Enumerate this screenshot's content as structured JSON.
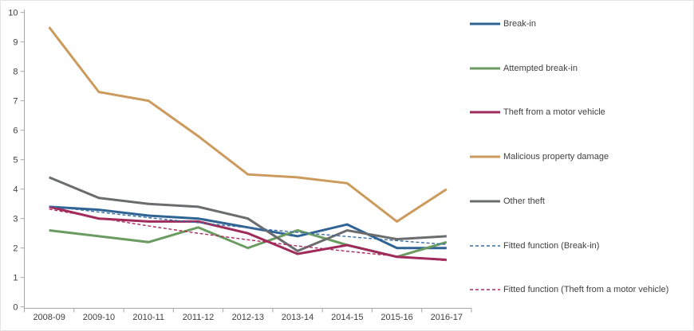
{
  "chart": {
    "background": "#FFFFFF",
    "border_color": "#E3E3E3",
    "axis_color": "#A6A6A6",
    "label_color": "#404040",
    "font_size": 11
  },
  "chart_data": {
    "type": "line",
    "title": "",
    "xlabel": "",
    "ylabel": "",
    "ylim": [
      0,
      10
    ],
    "yticks": [
      0,
      1,
      2,
      3,
      4,
      5,
      6,
      7,
      8,
      9,
      10
    ],
    "grid": false,
    "legend_position": "right",
    "categories": [
      "2008-09",
      "2009-10",
      "2010-11",
      "2011-12",
      "2012-13",
      "2013-14",
      "2014-15",
      "2015-16",
      "2016-17"
    ],
    "series": [
      {
        "name": "Break-in",
        "color": "#2E6394",
        "line_style": "solid",
        "values": [
          3.4,
          3.3,
          3.1,
          3.0,
          2.7,
          2.4,
          2.8,
          2.0,
          2.0
        ]
      },
      {
        "name": "Attempted break-in",
        "color": "#6A9B60",
        "line_style": "solid",
        "values": [
          2.6,
          2.4,
          2.2,
          2.7,
          2.0,
          2.6,
          2.1,
          1.7,
          2.2
        ]
      },
      {
        "name": "Theft from a motor vehicle",
        "color": "#9F2B5B",
        "line_style": "solid",
        "values": [
          3.4,
          3.0,
          2.9,
          2.9,
          2.5,
          1.8,
          2.1,
          1.7,
          1.6
        ]
      },
      {
        "name": "Malicious property damage",
        "color": "#CB9A5C",
        "line_style": "solid",
        "values": [
          9.5,
          7.3,
          7.0,
          5.8,
          4.5,
          4.4,
          4.2,
          2.9,
          4.0
        ]
      },
      {
        "name": "Other theft",
        "color": "#6B6C6E",
        "line_style": "solid",
        "values": [
          4.4,
          3.7,
          3.5,
          3.4,
          3.0,
          1.9,
          2.6,
          2.3,
          2.4
        ]
      },
      {
        "name": "Fitted function (Break-in)",
        "color": "#3A6DA4",
        "line_style": "dashed",
        "values": [
          3.42,
          3.22,
          3.03,
          2.86,
          2.69,
          2.53,
          2.39,
          2.25,
          2.12
        ]
      },
      {
        "name": "Fitted function (Theft from a motor vehicle)",
        "color": "#AD2A5E",
        "line_style": "dashed",
        "values": [
          3.32,
          3.02,
          2.75,
          2.5,
          2.28,
          2.07,
          1.89,
          1.72,
          1.57
        ]
      }
    ]
  }
}
